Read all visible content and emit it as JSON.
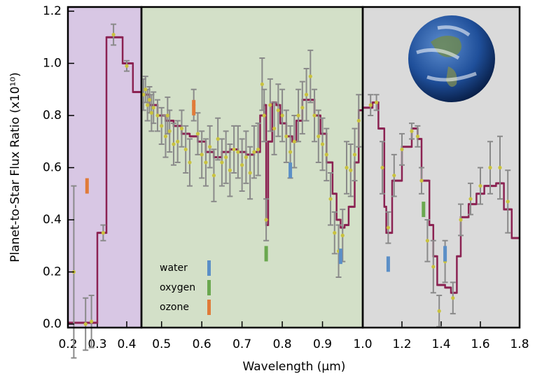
{
  "chart_data": [
    {
      "type": "step",
      "color": "#d8c7e4",
      "ylabel": "Planet-to-Star Flux Ratio (x10¹⁰)",
      "xlim": [
        0.2,
        0.45
      ],
      "xticks": [
        0.2,
        0.3,
        0.4
      ],
      "ylim": [
        0,
        1.2
      ],
      "yticks": [
        {
          "value": 0,
          "label": "0.0"
        },
        0.2,
        0.4,
        0.6,
        0.8,
        {
          "value": 1,
          "label": "1.0"
        },
        1.2
      ],
      "model": {
        "color": "#8b2252",
        "x": [
          0.2,
          0.3,
          0.331,
          0.386,
          0.421
        ],
        "values": [
          0.005,
          0.35,
          1.1,
          1.0,
          0.89
        ]
      },
      "observations": {
        "color": "#c9c23e",
        "x": [
          0.22,
          0.26,
          0.28,
          0.32,
          0.355,
          0.4
        ],
        "values": [
          0.2,
          0.0,
          0.01,
          0.35,
          1.11,
          0.99
        ],
        "errors": [
          0.33,
          0.1,
          0.1,
          0.03,
          0.04,
          0.02
        ]
      },
      "features": [
        {
          "color": "#e07b39",
          "x": 0.265,
          "y": 0.53
        }
      ]
    },
    {
      "type": "step",
      "color": "#d3e0c8",
      "xlabel": "Wavelength (μm)",
      "xlim": [
        0.45,
        1.0
      ],
      "xticks": [
        0.5,
        0.6,
        0.7,
        0.8,
        0.9,
        {
          "value": 1.0,
          "label": "1.0"
        }
      ],
      "legend": [
        {
          "name": "water",
          "color": "#5b8fc7"
        },
        {
          "name": "oxygen",
          "color": "#6aa84f"
        },
        {
          "name": "ozone",
          "color": "#e07b39"
        }
      ],
      "model": {
        "color": "#8b2252",
        "x": [
          0.45,
          0.47,
          0.49,
          0.51,
          0.53,
          0.55,
          0.57,
          0.59,
          0.61,
          0.63,
          0.65,
          0.67,
          0.69,
          0.71,
          0.73,
          0.745,
          0.755,
          0.76,
          0.765,
          0.775,
          0.785,
          0.795,
          0.81,
          0.825,
          0.835,
          0.85,
          0.87,
          0.88,
          0.895,
          0.91,
          0.925,
          0.935,
          0.945,
          0.955,
          0.965,
          0.98,
          0.99
        ],
        "values": [
          0.88,
          0.84,
          0.8,
          0.78,
          0.76,
          0.73,
          0.72,
          0.7,
          0.66,
          0.64,
          0.66,
          0.67,
          0.66,
          0.65,
          0.66,
          0.8,
          0.84,
          0.38,
          0.7,
          0.85,
          0.84,
          0.77,
          0.72,
          0.7,
          0.78,
          0.86,
          0.86,
          0.8,
          0.73,
          0.62,
          0.5,
          0.4,
          0.37,
          0.38,
          0.45,
          0.62,
          0.82
        ]
      },
      "observations": {
        "color": "#c9c23e",
        "x": [
          0.455,
          0.46,
          0.465,
          0.47,
          0.475,
          0.48,
          0.49,
          0.5,
          0.51,
          0.515,
          0.52,
          0.53,
          0.54,
          0.55,
          0.56,
          0.57,
          0.58,
          0.59,
          0.6,
          0.61,
          0.62,
          0.63,
          0.64,
          0.65,
          0.66,
          0.67,
          0.68,
          0.69,
          0.7,
          0.71,
          0.72,
          0.73,
          0.74,
          0.75,
          0.755,
          0.76,
          0.77,
          0.78,
          0.79,
          0.8,
          0.81,
          0.82,
          0.83,
          0.84,
          0.85,
          0.86,
          0.87,
          0.88,
          0.89,
          0.9,
          0.91,
          0.92,
          0.93,
          0.94,
          0.95,
          0.96,
          0.97,
          0.98,
          0.99
        ],
        "values": [
          0.88,
          0.9,
          0.84,
          0.86,
          0.81,
          0.83,
          0.8,
          0.76,
          0.72,
          0.8,
          0.74,
          0.69,
          0.7,
          0.75,
          0.67,
          0.62,
          0.84,
          0.73,
          0.65,
          0.62,
          0.68,
          0.57,
          0.71,
          0.62,
          0.64,
          0.59,
          0.67,
          0.66,
          0.61,
          0.64,
          0.58,
          0.66,
          0.67,
          0.92,
          0.8,
          0.4,
          0.84,
          0.75,
          0.82,
          0.8,
          0.72,
          0.66,
          0.7,
          0.8,
          0.83,
          0.88,
          0.95,
          0.8,
          0.72,
          0.69,
          0.65,
          0.48,
          0.35,
          0.28,
          0.34,
          0.6,
          0.59,
          0.65,
          0.78
        ],
        "errors": [
          0.06,
          0.05,
          0.06,
          0.05,
          0.07,
          0.06,
          0.06,
          0.07,
          0.08,
          0.07,
          0.08,
          0.08,
          0.08,
          0.07,
          0.09,
          0.09,
          0.06,
          0.08,
          0.09,
          0.09,
          0.08,
          0.1,
          0.08,
          0.09,
          0.1,
          0.1,
          0.09,
          0.1,
          0.1,
          0.1,
          0.1,
          0.1,
          0.1,
          0.1,
          0.1,
          0.08,
          0.1,
          0.1,
          0.1,
          0.1,
          0.1,
          0.1,
          0.1,
          0.1,
          0.1,
          0.1,
          0.1,
          0.1,
          0.1,
          0.1,
          0.1,
          0.1,
          0.08,
          0.1,
          0.1,
          0.1,
          0.1,
          0.1,
          0.1
        ]
      },
      "features": [
        {
          "color": "#e07b39",
          "x": 0.58,
          "y": 0.83
        },
        {
          "color": "#5b8fc7",
          "x": 0.82,
          "y": 0.59
        },
        {
          "color": "#6aa84f",
          "x": 0.76,
          "y": 0.27
        },
        {
          "color": "#5b8fc7",
          "x": 0.945,
          "y": 0.26
        }
      ]
    },
    {
      "type": "step",
      "color": "#dadada",
      "xlim": [
        1.0,
        1.8
      ],
      "xticks": [
        1.2,
        1.4,
        1.6,
        1.8
      ],
      "model": {
        "color": "#8b2252",
        "x": [
          1.0,
          1.05,
          1.08,
          1.11,
          1.12,
          1.15,
          1.2,
          1.25,
          1.28,
          1.3,
          1.34,
          1.36,
          1.38,
          1.42,
          1.45,
          1.48,
          1.5,
          1.54,
          1.58,
          1.62,
          1.68,
          1.72,
          1.76
        ],
        "values": [
          0.83,
          0.85,
          0.75,
          0.45,
          0.35,
          0.55,
          0.68,
          0.75,
          0.71,
          0.55,
          0.38,
          0.26,
          0.15,
          0.14,
          0.12,
          0.26,
          0.41,
          0.46,
          0.5,
          0.53,
          0.54,
          0.44,
          0.33
        ]
      },
      "observations": {
        "color": "#c9c23e",
        "x": [
          1.04,
          1.07,
          1.1,
          1.13,
          1.16,
          1.2,
          1.25,
          1.28,
          1.3,
          1.33,
          1.36,
          1.39,
          1.42,
          1.46,
          1.5,
          1.55,
          1.6,
          1.65,
          1.7,
          1.74
        ],
        "values": [
          0.84,
          0.85,
          0.6,
          0.37,
          0.57,
          0.67,
          0.74,
          0.72,
          0.55,
          0.32,
          0.22,
          0.05,
          0.24,
          0.1,
          0.4,
          0.48,
          0.53,
          0.6,
          0.6,
          0.47
        ],
        "errors": [
          0.04,
          0.03,
          0.1,
          0.06,
          0.08,
          0.06,
          0.03,
          0.04,
          0.05,
          0.08,
          0.1,
          0.06,
          0.08,
          0.06,
          0.06,
          0.06,
          0.07,
          0.1,
          0.12,
          0.12
        ]
      },
      "features": [
        {
          "color": "#5b8fc7",
          "x": 1.13,
          "y": 0.23
        },
        {
          "color": "#6aa84f",
          "x": 1.31,
          "y": 0.44
        },
        {
          "color": "#5b8fc7",
          "x": 1.42,
          "y": 0.27
        }
      ]
    }
  ]
}
